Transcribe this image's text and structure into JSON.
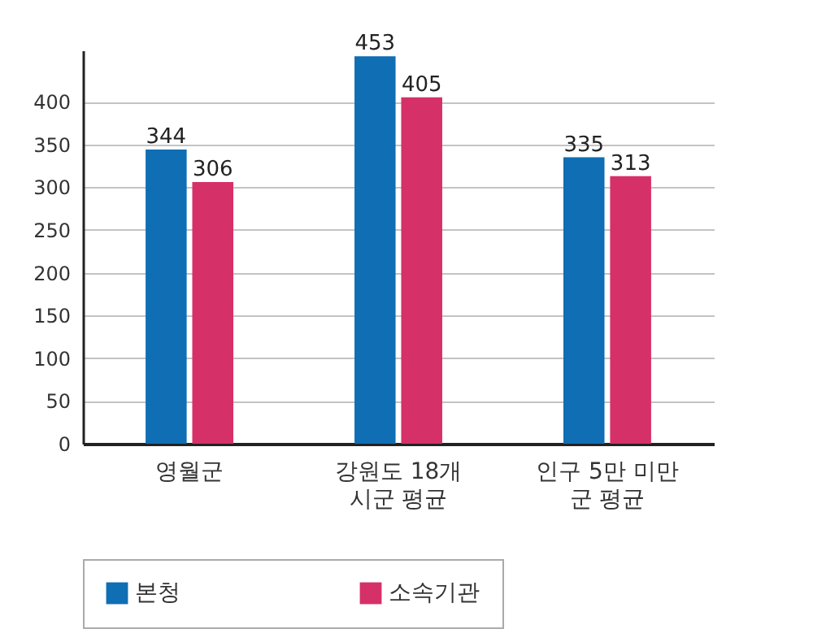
{
  "chart_data": {
    "type": "bar",
    "categories": [
      "영월군",
      "강원도 18개\n시군 평균",
      "인구 5만 미만\n군 평균"
    ],
    "series": [
      {
        "name": "본청",
        "color": "#0f6eb4",
        "values": [
          344,
          453,
          335
        ]
      },
      {
        "name": "소속기관",
        "color": "#d63068",
        "values": [
          306,
          405,
          313
        ]
      }
    ],
    "ylim": [
      0,
      460
    ],
    "yticks": [
      0,
      50,
      100,
      150,
      200,
      250,
      300,
      350,
      400
    ],
    "grid": "y",
    "legend": "bottom",
    "data_labels": true
  }
}
